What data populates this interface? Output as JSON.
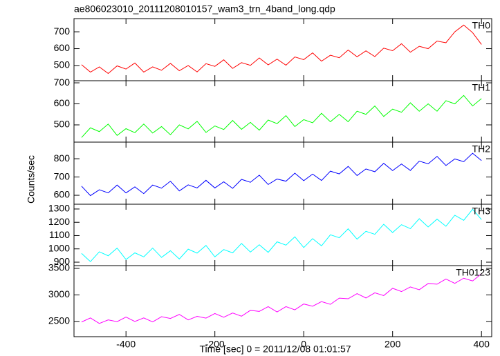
{
  "chart_data": [
    {
      "type": "line",
      "title": "ae806023010_20111208010157_wam3_trn_4band_long.qdp",
      "ylabel": "Counts/sec",
      "x": [
        -500,
        -480,
        -460,
        -440,
        -420,
        -400,
        -380,
        -360,
        -340,
        -320,
        -300,
        -280,
        -260,
        -240,
        -220,
        -200,
        -180,
        -160,
        -140,
        -120,
        -100,
        -80,
        -60,
        -40,
        -20,
        0,
        20,
        40,
        60,
        80,
        100,
        120,
        140,
        160,
        180,
        200,
        220,
        240,
        260,
        280,
        300,
        320,
        340,
        360,
        380,
        400
      ],
      "series": [
        {
          "name": "TH0",
          "color": "#ff0000",
          "values": [
            505,
            461,
            492,
            453,
            498,
            479,
            515,
            461,
            492,
            472,
            513,
            469,
            500,
            462,
            511,
            495,
            534,
            483,
            517,
            501,
            545,
            504,
            538,
            502,
            551,
            535,
            575,
            526,
            561,
            546,
            592,
            552,
            587,
            553,
            603,
            588,
            629,
            579,
            614,
            600,
            645,
            635,
            700,
            740,
            695,
            625
          ]
        }
      ],
      "xlim": [
        -517,
        423
      ],
      "xticks": [
        -400,
        -200,
        0,
        200,
        400
      ],
      "ylim": [
        410,
        778
      ],
      "yticks": [
        500,
        600,
        700
      ]
    },
    {
      "type": "line",
      "x": [
        -500,
        -480,
        -460,
        -440,
        -420,
        -400,
        -380,
        -360,
        -340,
        -320,
        -300,
        -280,
        -260,
        -240,
        -220,
        -200,
        -180,
        -160,
        -140,
        -120,
        -100,
        -80,
        -60,
        -40,
        -20,
        0,
        20,
        40,
        60,
        80,
        100,
        120,
        140,
        160,
        180,
        200,
        220,
        240,
        260,
        280,
        300,
        320,
        340,
        360,
        380,
        400
      ],
      "series": [
        {
          "name": "TH1",
          "color": "#00ff00",
          "values": [
            440,
            486,
            468,
            504,
            450,
            482,
            463,
            504,
            461,
            492,
            453,
            500,
            481,
            517,
            464,
            495,
            478,
            521,
            479,
            512,
            475,
            523,
            506,
            544,
            492,
            525,
            510,
            555,
            515,
            550,
            515,
            565,
            550,
            590,
            540,
            575,
            560,
            605,
            565,
            600,
            565,
            615,
            600,
            640,
            590,
            625
          ]
        }
      ],
      "xlim": [
        -517,
        423
      ],
      "xticks": [
        -400,
        -200,
        0,
        200,
        400
      ],
      "ylim": [
        418,
        710
      ],
      "yticks": [
        500,
        600,
        700
      ]
    },
    {
      "type": "line",
      "x": [
        -500,
        -480,
        -460,
        -440,
        -420,
        -400,
        -380,
        -360,
        -340,
        -320,
        -300,
        -280,
        -260,
        -240,
        -220,
        -200,
        -180,
        -160,
        -140,
        -120,
        -100,
        -80,
        -60,
        -40,
        -20,
        0,
        20,
        40,
        60,
        80,
        100,
        120,
        140,
        160,
        180,
        200,
        220,
        240,
        260,
        280,
        300,
        320,
        340,
        360,
        380,
        400
      ],
      "series": [
        {
          "name": "TH2",
          "color": "#0000ff",
          "values": [
            650,
            598,
            630,
            613,
            656,
            613,
            646,
            609,
            656,
            639,
            677,
            624,
            657,
            640,
            682,
            640,
            674,
            638,
            687,
            671,
            710,
            659,
            689,
            677,
            721,
            680,
            716,
            681,
            732,
            717,
            758,
            708,
            744,
            729,
            775,
            735,
            771,
            736,
            787,
            772,
            813,
            763,
            799,
            784,
            830,
            790
          ]
        }
      ],
      "xlim": [
        -517,
        423
      ],
      "xticks": [
        -400,
        -200,
        0,
        200,
        400
      ],
      "ylim": [
        551,
        891
      ],
      "yticks": [
        600,
        700,
        800
      ]
    },
    {
      "type": "line",
      "x": [
        -500,
        -480,
        -460,
        -440,
        -420,
        -400,
        -380,
        -360,
        -340,
        -320,
        -300,
        -280,
        -260,
        -240,
        -220,
        -200,
        -180,
        -160,
        -140,
        -120,
        -100,
        -80,
        -60,
        -40,
        -20,
        0,
        20,
        40,
        60,
        80,
        100,
        120,
        140,
        160,
        180,
        200,
        220,
        240,
        260,
        280,
        300,
        320,
        340,
        360,
        380,
        400
      ],
      "series": [
        {
          "name": "TH3",
          "color": "#00ffff",
          "values": [
            966,
            904,
            978,
            948,
            1006,
            920,
            970,
            940,
            1006,
            936,
            986,
            924,
            998,
            968,
            1026,
            940,
            995,
            970,
            1041,
            976,
            1031,
            974,
            1053,
            1028,
            1091,
            1010,
            1077,
            1023,
            1106,
            1084,
            1151,
            1073,
            1132,
            1110,
            1185,
            1123,
            1182,
            1152,
            1227,
            1165,
            1224,
            1170,
            1253,
            1215,
            1298,
            1220
          ]
        }
      ],
      "xlim": [
        -517,
        423
      ],
      "xticks": [
        -400,
        -200,
        0,
        200,
        400
      ],
      "ylim": [
        874,
        1336
      ],
      "yticks": [
        900,
        1000,
        1100,
        1200,
        1300
      ]
    },
    {
      "type": "line",
      "xlabel": "Time [sec] 0 = 2011/12/08 01:01:57",
      "x": [
        -500,
        -480,
        -460,
        -440,
        -420,
        -400,
        -380,
        -360,
        -340,
        -320,
        -300,
        -280,
        -260,
        -240,
        -220,
        -200,
        -180,
        -160,
        -140,
        -120,
        -100,
        -80,
        -60,
        -40,
        -20,
        0,
        20,
        40,
        60,
        80,
        100,
        120,
        140,
        160,
        180,
        200,
        220,
        240,
        260,
        280,
        300,
        320,
        340,
        360,
        380,
        400
      ],
      "series": [
        {
          "name": "TH0123",
          "color": "#ff00ff",
          "values": [
            2490,
            2567,
            2463,
            2530,
            2497,
            2583,
            2500,
            2567,
            2493,
            2590,
            2557,
            2633,
            2530,
            2597,
            2563,
            2650,
            2580,
            2660,
            2600,
            2710,
            2690,
            2780,
            2680,
            2780,
            2720,
            2830,
            2788,
            2875,
            2823,
            2940,
            2928,
            3025,
            2943,
            3040,
            2988,
            3125,
            3063,
            3150,
            3098,
            3215,
            3203,
            3300,
            3218,
            3315,
            3263,
            3400
          ]
        }
      ],
      "xlim": [
        -517,
        423
      ],
      "xticks": [
        -400,
        -200,
        0,
        200,
        400
      ],
      "ylim": [
        2214,
        3552
      ],
      "yticks": [
        2500,
        3000,
        3500
      ]
    }
  ]
}
